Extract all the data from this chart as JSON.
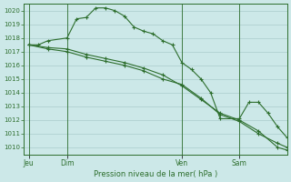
{
  "background_color": "#cce8e8",
  "grid_color": "#aacccc",
  "line_color": "#2d6e2d",
  "marker": "+",
  "title": "Pression niveau de la mer( hPa )",
  "ylabel_ticks": [
    1010,
    1011,
    1012,
    1013,
    1014,
    1015,
    1016,
    1017,
    1018,
    1019,
    1020
  ],
  "ylim": [
    1009.5,
    1020.5
  ],
  "day_labels": [
    "Jeu",
    "Dim",
    "Ven",
    "Sam"
  ],
  "day_positions": [
    0,
    8,
    32,
    44
  ],
  "xlim": [
    -1,
    54
  ],
  "series1_x": [
    0,
    2,
    4,
    8,
    10,
    12,
    14,
    16,
    18,
    20,
    22,
    24,
    26,
    28,
    30,
    32,
    34,
    36,
    38,
    40,
    44,
    46,
    48,
    50,
    52,
    54
  ],
  "series1_y": [
    1017.5,
    1017.5,
    1017.8,
    1018.0,
    1019.4,
    1019.5,
    1020.2,
    1020.2,
    1020.0,
    1019.6,
    1018.8,
    1018.5,
    1018.3,
    1017.8,
    1017.5,
    1016.2,
    1015.7,
    1015.0,
    1014.0,
    1012.1,
    1012.1,
    1013.3,
    1013.3,
    1012.5,
    1011.5,
    1010.7
  ],
  "series2_x": [
    0,
    4,
    8,
    12,
    16,
    20,
    24,
    28,
    32,
    36,
    40,
    44,
    48,
    52,
    54
  ],
  "series2_y": [
    1017.5,
    1017.3,
    1017.2,
    1016.8,
    1016.5,
    1016.2,
    1015.8,
    1015.3,
    1014.5,
    1013.5,
    1012.5,
    1012.0,
    1011.2,
    1010.0,
    1009.8
  ],
  "series3_x": [
    0,
    4,
    8,
    12,
    16,
    20,
    24,
    28,
    32,
    36,
    40,
    44,
    48,
    52,
    54
  ],
  "series3_y": [
    1017.5,
    1017.2,
    1017.0,
    1016.6,
    1016.3,
    1016.0,
    1015.6,
    1015.0,
    1014.6,
    1013.6,
    1012.4,
    1011.9,
    1011.0,
    1010.3,
    1010.0
  ]
}
